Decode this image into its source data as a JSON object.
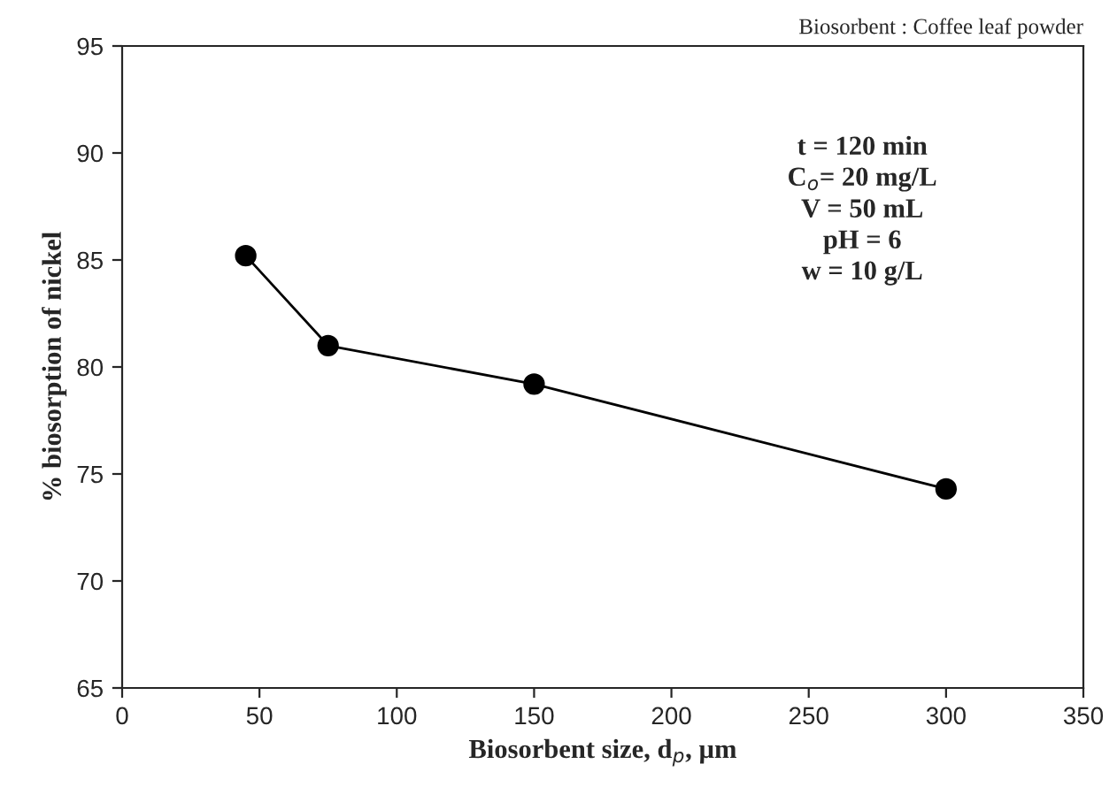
{
  "chart_data": {
    "type": "line",
    "xlabel": "Biosorbent size, d$_{p}$, µm",
    "ylabel": "% biosorption of nickel",
    "x": [
      45,
      75,
      150,
      300
    ],
    "series": [
      {
        "color": "#000000",
        "values": [
          85.2,
          81.0,
          79.2,
          74.3
        ]
      }
    ],
    "xlim": [
      0,
      350
    ],
    "xticks": [
      0,
      50,
      100,
      150,
      200,
      250,
      300,
      350
    ],
    "ylim": [
      65,
      95
    ],
    "yticks": [
      65,
      70,
      75,
      80,
      85,
      90,
      95
    ],
    "marker": "circle",
    "line_style": "solid",
    "grid": false,
    "legend": false,
    "annotations": [
      "Biosorbent : Coffee leaf powder",
      "t = 120 min\nC$_{o}$= 20 mg/L\nV = 50 mL\npH = 6\nw = 10 g/L"
    ]
  }
}
